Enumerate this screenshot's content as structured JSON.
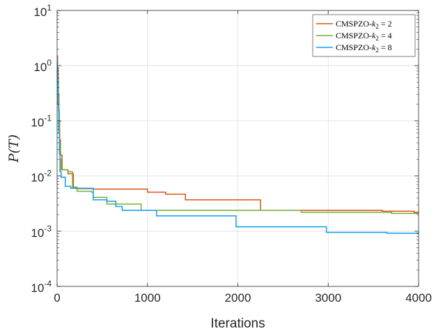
{
  "chart_data": {
    "type": "line",
    "title": "",
    "xlabel": "Iterations",
    "ylabel": "P(T)",
    "xlim": [
      0,
      4000
    ],
    "ylim": [
      0.0001,
      10
    ],
    "yscale": "log",
    "grid": true,
    "legend_position": "top-right",
    "x_ticks": [
      0,
      1000,
      2000,
      3000,
      4000
    ],
    "x_tick_labels": [
      "0",
      "1000",
      "2000",
      "3000",
      "4000"
    ],
    "y_ticks": [
      0.0001,
      0.001,
      0.01,
      0.1,
      1,
      10
    ],
    "y_tick_labels": [
      {
        "base": "10",
        "exp": "-4"
      },
      {
        "base": "10",
        "exp": "-3"
      },
      {
        "base": "10",
        "exp": "-2"
      },
      {
        "base": "10",
        "exp": "-1"
      },
      {
        "base": "10",
        "exp": "0"
      },
      {
        "base": "10",
        "exp": "1"
      }
    ],
    "series": [
      {
        "name": "CMSPZO-k2 = 2",
        "legend_prefix": "CMSPZO-",
        "legend_var": "k",
        "legend_sub": "2",
        "legend_suffix": " = 2",
        "color": "#D95319",
        "points": [
          [
            0,
            1.5
          ],
          [
            5,
            0.9
          ],
          [
            12,
            0.3
          ],
          [
            20,
            0.1
          ],
          [
            28,
            0.045
          ],
          [
            38,
            0.024
          ],
          [
            55,
            0.013
          ],
          [
            120,
            0.011
          ],
          [
            180,
            0.0062
          ],
          [
            220,
            0.0059
          ],
          [
            400,
            0.0058
          ],
          [
            1000,
            0.0051
          ],
          [
            1200,
            0.0047
          ],
          [
            1420,
            0.0037
          ],
          [
            2250,
            0.0024
          ],
          [
            3600,
            0.0023
          ],
          [
            3950,
            0.0022
          ],
          [
            4000,
            0.0022
          ]
        ]
      },
      {
        "name": "CMSPZO-k2 = 4",
        "legend_prefix": "CMSPZO-",
        "legend_var": "k",
        "legend_sub": "2",
        "legend_suffix": " = 4",
        "color": "#77AC30",
        "points": [
          [
            0,
            1.3
          ],
          [
            6,
            0.6
          ],
          [
            15,
            0.15
          ],
          [
            25,
            0.04
          ],
          [
            35,
            0.02
          ],
          [
            45,
            0.013
          ],
          [
            120,
            0.012
          ],
          [
            170,
            0.0063
          ],
          [
            220,
            0.0053
          ],
          [
            380,
            0.0051
          ],
          [
            400,
            0.0041
          ],
          [
            550,
            0.0031
          ],
          [
            930,
            0.0024
          ],
          [
            2700,
            0.0022
          ],
          [
            3700,
            0.0021
          ],
          [
            4000,
            0.0021
          ]
        ]
      },
      {
        "name": "CMSPZO-k2 = 8",
        "legend_prefix": "CMSPZO-",
        "legend_var": "k",
        "legend_sub": "2",
        "legend_suffix": " = 8",
        "color": "#0E9EEA",
        "points": [
          [
            0,
            1.2
          ],
          [
            4,
            0.5
          ],
          [
            10,
            0.2
          ],
          [
            18,
            0.06
          ],
          [
            25,
            0.025
          ],
          [
            32,
            0.012
          ],
          [
            45,
            0.0095
          ],
          [
            90,
            0.0065
          ],
          [
            150,
            0.006
          ],
          [
            400,
            0.0037
          ],
          [
            550,
            0.0035
          ],
          [
            650,
            0.0028
          ],
          [
            720,
            0.0024
          ],
          [
            1100,
            0.0019
          ],
          [
            1980,
            0.0012
          ],
          [
            2980,
            0.00095
          ],
          [
            3650,
            0.00092
          ],
          [
            4000,
            0.00096
          ]
        ]
      }
    ]
  }
}
